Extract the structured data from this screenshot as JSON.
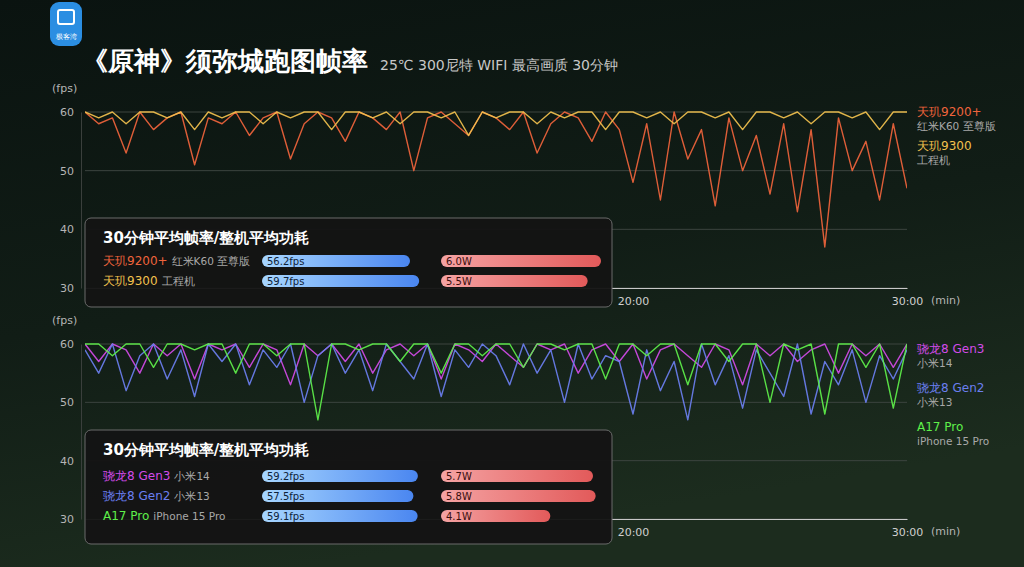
{
  "logo": "极客湾",
  "title": "《原神》须弥城跑图帧率",
  "subtitle": "25℃ 300尼特 WIFI 最高画质 30分钟",
  "chart_data": [
    {
      "type": "line",
      "y_label": "(fps)",
      "x_label": "(min)",
      "x": [
        0,
        0.5,
        1,
        1.5,
        2,
        2.5,
        3,
        3.5,
        4,
        4.5,
        5,
        5.5,
        6,
        6.5,
        7,
        7.5,
        8,
        8.5,
        9,
        9.5,
        10,
        10.5,
        11,
        11.5,
        12,
        12.5,
        13,
        13.5,
        14,
        14.5,
        15,
        15.5,
        16,
        16.5,
        17,
        17.5,
        18,
        18.5,
        19,
        19.5,
        20,
        20.5,
        21,
        21.5,
        22,
        22.5,
        23,
        23.5,
        24,
        24.5,
        25,
        25.5,
        26,
        26.5,
        27,
        27.5,
        28,
        28.5,
        29,
        29.5,
        30
      ],
      "xlim": [
        0,
        30
      ],
      "xticks": [
        {
          "value": 20,
          "label": "20:00"
        },
        {
          "value": 30,
          "label": "30:00"
        }
      ],
      "ylim": [
        30,
        60
      ],
      "yticks": [
        30,
        40,
        50,
        60
      ],
      "grid": true,
      "legend": "right",
      "series": [
        {
          "name": "天玑9200+",
          "device": "红米K60 至尊版",
          "color": "#f0643c",
          "values": [
            60,
            58,
            59,
            53,
            60,
            57,
            59,
            60,
            51,
            59,
            58,
            60,
            56,
            59,
            60,
            52,
            58,
            60,
            59,
            55,
            60,
            59,
            57,
            60,
            50,
            59,
            60,
            58,
            56,
            60,
            59,
            57,
            60,
            53,
            58,
            60,
            59,
            55,
            60,
            57,
            48,
            58,
            45,
            60,
            52,
            57,
            44,
            59,
            50,
            56,
            46,
            58,
            43,
            57,
            37,
            59,
            50,
            55,
            45,
            58,
            47
          ]
        },
        {
          "name": "天玑9300",
          "device": "工程机",
          "color": "#f2c14e",
          "values": [
            60,
            59,
            60,
            58,
            60,
            60,
            59,
            60,
            57,
            60,
            59,
            60,
            60,
            58,
            60,
            59,
            60,
            60,
            57,
            60,
            60,
            59,
            60,
            58,
            60,
            60,
            59,
            60,
            56,
            60,
            59,
            60,
            60,
            58,
            60,
            59,
            60,
            60,
            57,
            60,
            60,
            59,
            60,
            58,
            60,
            60,
            59,
            60,
            57,
            60,
            60,
            59,
            60,
            58,
            60,
            60,
            59,
            60,
            57,
            60,
            60
          ]
        }
      ],
      "summary": {
        "title": "30分钟平均帧率/整机平均功耗",
        "type": "bar",
        "orientation": "horizontal",
        "data_labels": true,
        "fps": {
          "values": [
            56.2,
            59.7
          ],
          "value_labels": [
            "56.2fps",
            "59.7fps"
          ],
          "xlim": [
            0,
            60
          ]
        },
        "power": {
          "values": [
            6.0,
            5.5
          ],
          "value_labels": [
            "6.0W",
            "5.5W"
          ],
          "xlim": [
            0,
            6
          ]
        }
      }
    },
    {
      "type": "line",
      "y_label": "(fps)",
      "x_label": "(min)",
      "x": [
        0,
        0.5,
        1,
        1.5,
        2,
        2.5,
        3,
        3.5,
        4,
        4.5,
        5,
        5.5,
        6,
        6.5,
        7,
        7.5,
        8,
        8.5,
        9,
        9.5,
        10,
        10.5,
        11,
        11.5,
        12,
        12.5,
        13,
        13.5,
        14,
        14.5,
        15,
        15.5,
        16,
        16.5,
        17,
        17.5,
        18,
        18.5,
        19,
        19.5,
        20,
        20.5,
        21,
        21.5,
        22,
        22.5,
        23,
        23.5,
        24,
        24.5,
        25,
        25.5,
        26,
        26.5,
        27,
        27.5,
        28,
        28.5,
        29,
        29.5,
        30
      ],
      "xlim": [
        0,
        30
      ],
      "xticks": [
        {
          "value": 20,
          "label": "20:00"
        },
        {
          "value": 30,
          "label": "30:00"
        }
      ],
      "ylim": [
        30,
        60
      ],
      "yticks": [
        30,
        40,
        50,
        60
      ],
      "grid": true,
      "legend": "right",
      "series": [
        {
          "name": "骁龙8 Gen3",
          "device": "小米14",
          "color": "#d24be8",
          "values": [
            60,
            57,
            60,
            59,
            55,
            60,
            58,
            60,
            54,
            60,
            59,
            60,
            56,
            60,
            59,
            53,
            60,
            58,
            60,
            57,
            60,
            55,
            59,
            60,
            58,
            60,
            54,
            60,
            59,
            57,
            60,
            58,
            56,
            60,
            59,
            60,
            55,
            59,
            60,
            57,
            60,
            54,
            59,
            60,
            58,
            56,
            60,
            59,
            53,
            60,
            58,
            60,
            57,
            59,
            60,
            55,
            60,
            58,
            60,
            56,
            60
          ]
        },
        {
          "name": "骁龙8 Gen2",
          "device": "小米13",
          "color": "#6b7ff0",
          "values": [
            59,
            55,
            60,
            52,
            58,
            60,
            54,
            59,
            51,
            60,
            57,
            60,
            53,
            59,
            56,
            60,
            50,
            58,
            60,
            55,
            59,
            52,
            60,
            57,
            54,
            60,
            51,
            59,
            56,
            60,
            58,
            53,
            60,
            55,
            59,
            50,
            60,
            54,
            58,
            57,
            48,
            59,
            52,
            57,
            47,
            60,
            53,
            58,
            49,
            59,
            55,
            51,
            60,
            48,
            57,
            53,
            59,
            50,
            58,
            54,
            59
          ]
        },
        {
          "name": "A17 Pro",
          "device": "iPhone 15 Pro",
          "color": "#5ef04a",
          "values": [
            60,
            60,
            58,
            60,
            60,
            56,
            60,
            60,
            59,
            60,
            60,
            55,
            60,
            60,
            58,
            60,
            60,
            47,
            60,
            60,
            59,
            60,
            60,
            57,
            60,
            60,
            55,
            60,
            60,
            58,
            60,
            60,
            56,
            60,
            60,
            59,
            60,
            60,
            54,
            60,
            60,
            58,
            60,
            60,
            53,
            60,
            60,
            57,
            60,
            60,
            50,
            60,
            59,
            60,
            48,
            60,
            60,
            56,
            60,
            49,
            60
          ]
        }
      ],
      "summary": {
        "title": "30分钟平均帧率/整机平均功耗",
        "type": "bar",
        "orientation": "horizontal",
        "data_labels": true,
        "fps": {
          "values": [
            59.2,
            57.5,
            59.1
          ],
          "value_labels": [
            "59.2fps",
            "57.5fps",
            "59.1fps"
          ],
          "xlim": [
            0,
            60
          ]
        },
        "power": {
          "values": [
            5.7,
            5.8,
            4.1
          ],
          "value_labels": [
            "5.7W",
            "5.8W",
            "4.1W"
          ],
          "xlim": [
            0,
            6
          ]
        }
      }
    }
  ]
}
